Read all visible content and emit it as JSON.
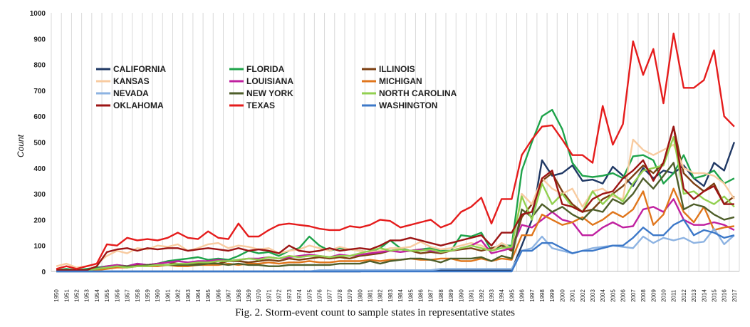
{
  "chart_data": {
    "type": "line",
    "ylabel": "Count",
    "ylim": [
      0,
      1000
    ],
    "yticks": [
      "0",
      "100",
      "200",
      "300",
      "400",
      "500",
      "600",
      "700",
      "800",
      "900",
      "1000"
    ],
    "x": [
      "1950",
      "1951",
      "1952",
      "1953",
      "1954",
      "1955",
      "1956",
      "1957",
      "1958",
      "1959",
      "1960",
      "1961",
      "1962",
      "1963",
      "1964",
      "1965",
      "1966",
      "1967",
      "1968",
      "1969",
      "1970",
      "1971",
      "1972",
      "1973",
      "1974",
      "1975",
      "1976",
      "1977",
      "1978",
      "1979",
      "1980",
      "1981",
      "1982",
      "1983",
      "1984",
      "1985",
      "1986",
      "1987",
      "1988",
      "1989",
      "1990",
      "1991",
      "1992",
      "1993",
      "1994",
      "1995",
      "1996",
      "1997",
      "1998",
      "1999",
      "2000",
      "2001",
      "2002",
      "2003",
      "2004",
      "2005",
      "2006",
      "2007",
      "2008",
      "2009",
      "2010",
      "2011",
      "2012",
      "2013",
      "2014",
      "2015",
      "2016",
      "2017"
    ],
    "grid": "vertical",
    "legend_position": "top-left",
    "series": [
      {
        "name": "CALIFORNIA",
        "color": "#1f3864",
        "values": [
          0,
          0,
          0,
          0,
          0,
          0,
          0,
          0,
          0,
          0,
          0,
          0,
          0,
          0,
          0,
          0,
          0,
          0,
          0,
          0,
          0,
          0,
          0,
          0,
          0,
          0,
          0,
          0,
          0,
          0,
          0,
          5,
          5,
          5,
          5,
          5,
          5,
          5,
          5,
          5,
          5,
          5,
          5,
          5,
          5,
          5,
          100,
          200,
          430,
          370,
          380,
          410,
          350,
          355,
          340,
          405,
          370,
          330,
          400,
          360,
          390,
          380,
          410,
          360,
          330,
          420,
          390,
          500
        ]
      },
      {
        "name": "FLORIDA",
        "color": "#1ea34a",
        "values": [
          5,
          10,
          5,
          10,
          15,
          20,
          25,
          20,
          30,
          25,
          30,
          40,
          45,
          50,
          55,
          45,
          50,
          45,
          60,
          80,
          70,
          75,
          60,
          80,
          90,
          135,
          100,
          80,
          90,
          85,
          80,
          75,
          90,
          120,
          90,
          80,
          85,
          90,
          80,
          80,
          140,
          135,
          150,
          80,
          100,
          100,
          390,
          500,
          600,
          625,
          550,
          420,
          370,
          365,
          370,
          380,
          360,
          445,
          450,
          430,
          340,
          380,
          450,
          360,
          370,
          390,
          340,
          360
        ]
      },
      {
        "name": "ILLINOIS",
        "color": "#7b3f12",
        "values": [
          5,
          5,
          5,
          5,
          10,
          15,
          20,
          20,
          25,
          25,
          30,
          35,
          30,
          25,
          30,
          35,
          30,
          40,
          40,
          35,
          40,
          45,
          40,
          50,
          45,
          50,
          55,
          50,
          55,
          50,
          60,
          65,
          70,
          80,
          85,
          80,
          70,
          75,
          70,
          80,
          85,
          90,
          80,
          90,
          100,
          80,
          210,
          260,
          350,
          380,
          310,
          260,
          230,
          240,
          280,
          300,
          330,
          370,
          410,
          380,
          420,
          560,
          380,
          340,
          310,
          340,
          260,
          290
        ]
      },
      {
        "name": "KANSAS",
        "color": "#f8cba0",
        "values": [
          20,
          30,
          15,
          20,
          30,
          60,
          80,
          70,
          90,
          85,
          100,
          95,
          105,
          80,
          90,
          105,
          110,
          90,
          100,
          95,
          85,
          90,
          70,
          80,
          85,
          100,
          90,
          80,
          95,
          85,
          80,
          75,
          80,
          90,
          90,
          95,
          115,
          95,
          85,
          90,
          100,
          110,
          100,
          80,
          110,
          90,
          300,
          260,
          360,
          320,
          300,
          320,
          250,
          310,
          320,
          290,
          280,
          510,
          470,
          450,
          470,
          490,
          400,
          380,
          380,
          370,
          340,
          280
        ]
      },
      {
        "name": "LOUISIANA",
        "color": "#c020a0",
        "values": [
          5,
          5,
          5,
          5,
          10,
          20,
          25,
          20,
          30,
          25,
          30,
          35,
          40,
          35,
          40,
          40,
          45,
          40,
          45,
          50,
          50,
          55,
          50,
          55,
          60,
          65,
          60,
          55,
          65,
          60,
          65,
          70,
          75,
          80,
          75,
          80,
          85,
          80,
          75,
          80,
          90,
          100,
          120,
          70,
          80,
          90,
          180,
          170,
          200,
          230,
          200,
          190,
          140,
          140,
          170,
          190,
          170,
          175,
          240,
          250,
          230,
          280,
          200,
          180,
          180,
          190,
          180,
          160
        ]
      },
      {
        "name": "MICHIGAN",
        "color": "#e0761c",
        "values": [
          5,
          5,
          5,
          5,
          5,
          10,
          15,
          15,
          20,
          20,
          20,
          25,
          20,
          20,
          25,
          25,
          25,
          30,
          25,
          30,
          30,
          35,
          30,
          35,
          35,
          40,
          35,
          35,
          40,
          40,
          40,
          45,
          40,
          45,
          45,
          50,
          45,
          45,
          50,
          50,
          40,
          40,
          50,
          40,
          50,
          45,
          140,
          140,
          220,
          200,
          180,
          190,
          210,
          180,
          200,
          230,
          210,
          240,
          310,
          180,
          220,
          320,
          230,
          190,
          250,
          160,
          170,
          175
        ]
      },
      {
        "name": "NEVADA",
        "color": "#8db3e2",
        "values": [
          0,
          0,
          0,
          0,
          0,
          0,
          0,
          0,
          0,
          0,
          0,
          0,
          0,
          0,
          0,
          0,
          0,
          0,
          0,
          0,
          0,
          0,
          0,
          0,
          0,
          0,
          5,
          5,
          5,
          5,
          5,
          5,
          5,
          5,
          5,
          5,
          5,
          5,
          10,
          10,
          10,
          10,
          10,
          10,
          10,
          10,
          80,
          90,
          135,
          90,
          80,
          70,
          80,
          90,
          95,
          100,
          95,
          90,
          135,
          110,
          130,
          120,
          130,
          110,
          115,
          165,
          105,
          140
        ]
      },
      {
        "name": "NEW YORK",
        "color": "#4e5e2a",
        "values": [
          5,
          5,
          5,
          5,
          10,
          15,
          20,
          20,
          20,
          25,
          25,
          25,
          25,
          25,
          25,
          30,
          30,
          25,
          30,
          25,
          25,
          20,
          20,
          25,
          25,
          25,
          25,
          25,
          30,
          30,
          30,
          40,
          30,
          40,
          45,
          50,
          50,
          45,
          35,
          50,
          50,
          50,
          55,
          40,
          60,
          50,
          240,
          210,
          260,
          230,
          250,
          220,
          200,
          240,
          230,
          280,
          260,
          300,
          360,
          320,
          370,
          420,
          240,
          260,
          250,
          220,
          200,
          210
        ]
      },
      {
        "name": "NORTH CAROLINA",
        "color": "#92d050",
        "values": [
          5,
          5,
          5,
          5,
          10,
          15,
          20,
          15,
          20,
          20,
          25,
          25,
          30,
          30,
          35,
          35,
          40,
          40,
          45,
          50,
          45,
          55,
          50,
          60,
          55,
          60,
          60,
          55,
          60,
          60,
          70,
          80,
          90,
          80,
          85,
          80,
          80,
          85,
          75,
          80,
          90,
          100,
          90,
          80,
          90,
          95,
          290,
          200,
          340,
          260,
          300,
          250,
          230,
          310,
          260,
          300,
          270,
          340,
          390,
          400,
          410,
          520,
          300,
          310,
          280,
          260,
          290,
          250
        ]
      },
      {
        "name": "OKLAHOMA",
        "color": "#9c1414",
        "values": [
          5,
          5,
          5,
          5,
          20,
          75,
          85,
          90,
          80,
          90,
          85,
          90,
          90,
          80,
          85,
          90,
          85,
          80,
          90,
          80,
          85,
          80,
          70,
          100,
          80,
          75,
          80,
          90,
          80,
          85,
          90,
          85,
          100,
          120,
          120,
          130,
          120,
          110,
          100,
          110,
          120,
          130,
          140,
          100,
          150,
          150,
          220,
          230,
          360,
          390,
          260,
          250,
          230,
          280,
          300,
          310,
          360,
          390,
          430,
          350,
          420,
          560,
          320,
          280,
          310,
          330,
          260,
          260
        ]
      },
      {
        "name": "TEXAS",
        "color": "#e51c1c",
        "values": [
          10,
          20,
          10,
          20,
          30,
          105,
          100,
          130,
          120,
          125,
          120,
          130,
          150,
          130,
          125,
          155,
          130,
          125,
          185,
          135,
          135,
          160,
          180,
          185,
          180,
          175,
          165,
          160,
          160,
          175,
          170,
          180,
          200,
          195,
          170,
          180,
          190,
          200,
          170,
          185,
          230,
          250,
          285,
          185,
          280,
          280,
          450,
          510,
          560,
          565,
          510,
          450,
          450,
          420,
          640,
          490,
          570,
          890,
          760,
          860,
          650,
          920,
          710,
          710,
          740,
          855,
          600,
          560
        ]
      },
      {
        "name": "WASHINGTON",
        "color": "#3c78c8",
        "values": [
          0,
          0,
          0,
          0,
          0,
          0,
          0,
          0,
          0,
          0,
          0,
          0,
          0,
          0,
          0,
          0,
          0,
          0,
          0,
          0,
          0,
          0,
          0,
          0,
          0,
          0,
          0,
          0,
          0,
          0,
          0,
          0,
          0,
          0,
          0,
          0,
          0,
          0,
          0,
          0,
          0,
          0,
          0,
          0,
          0,
          0,
          80,
          80,
          110,
          110,
          90,
          70,
          80,
          80,
          90,
          100,
          100,
          130,
          170,
          140,
          140,
          180,
          200,
          140,
          160,
          150,
          130,
          140
        ]
      }
    ]
  },
  "caption": "Fig. 2. Storm-event count to sample states in representative states"
}
